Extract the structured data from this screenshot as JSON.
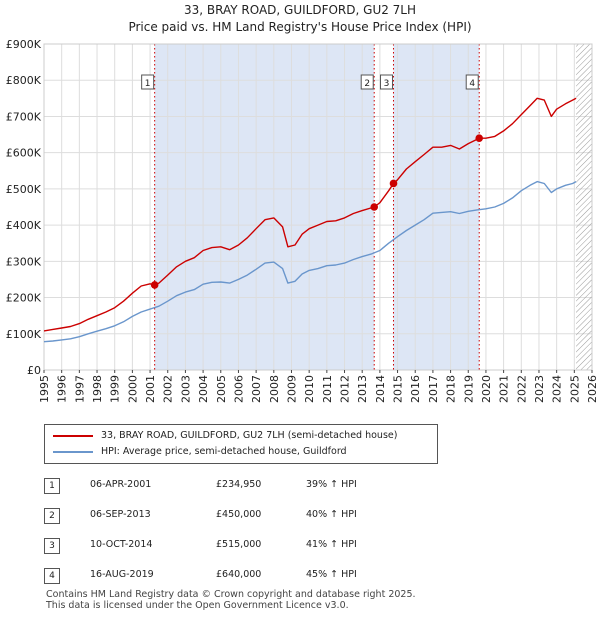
{
  "title": {
    "line1": "33, BRAY ROAD, GUILDFORD, GU2 7LH",
    "line2": "Price paid vs. HM Land Registry's House Price Index (HPI)"
  },
  "colors": {
    "property": "#cc0000",
    "hpi": "#6a96cc",
    "shade": "#dde6f5",
    "future_hatch": "#999999",
    "grid": "#dddddd"
  },
  "chart_data": {
    "type": "line",
    "title": "Price paid vs. HM Land Registry's House Price Index (HPI)",
    "xlabel": "",
    "ylabel": "",
    "xlim": [
      1995,
      2026
    ],
    "ylim": [
      0,
      900000
    ],
    "y_ticks": [
      0,
      100000,
      200000,
      300000,
      400000,
      500000,
      600000,
      700000,
      800000,
      900000
    ],
    "y_tick_labels": [
      "£0",
      "£100K",
      "£200K",
      "£300K",
      "£400K",
      "£500K",
      "£600K",
      "£700K",
      "£800K",
      "£900K"
    ],
    "x_ticks": [
      1995,
      1996,
      1997,
      1998,
      1999,
      2000,
      2001,
      2002,
      2003,
      2004,
      2005,
      2006,
      2007,
      2008,
      2009,
      2010,
      2011,
      2012,
      2013,
      2014,
      2015,
      2016,
      2017,
      2018,
      2019,
      2020,
      2021,
      2022,
      2023,
      2024,
      2025,
      2026
    ],
    "x_tick_labels": [
      "1995",
      "1996",
      "1997",
      "1998",
      "1999",
      "2000",
      "2001",
      "2002",
      "2003",
      "2004",
      "2005",
      "2006",
      "2007",
      "2008",
      "2009",
      "2010",
      "2011",
      "2012",
      "2013",
      "2014",
      "2015",
      "2016",
      "2017",
      "2018",
      "2019",
      "2020",
      "2021",
      "2022",
      "2023",
      "2024",
      "2025",
      "2026"
    ],
    "grid": true,
    "future_hatch_from": 2025.1,
    "shaded_ranges": [
      [
        2001.26,
        2013.68
      ],
      [
        2014.77,
        2019.62
      ]
    ],
    "series": [
      {
        "name": "33, BRAY ROAD, GUILDFORD, GU2 7LH (semi-detached house)",
        "x": [
          1995.0,
          1995.5,
          1996.0,
          1996.5,
          1997.0,
          1997.5,
          1998.0,
          1998.5,
          1999.0,
          1999.5,
          2000.0,
          2000.5,
          2001.0,
          2001.26,
          2001.5,
          2002.0,
          2002.5,
          2003.0,
          2003.5,
          2004.0,
          2004.5,
          2005.0,
          2005.5,
          2006.0,
          2006.5,
          2007.0,
          2007.5,
          2008.0,
          2008.5,
          2008.8,
          2009.2,
          2009.6,
          2010.0,
          2010.5,
          2011.0,
          2011.5,
          2012.0,
          2012.5,
          2013.0,
          2013.68,
          2014.0,
          2014.5,
          2014.77,
          2015.0,
          2015.5,
          2016.0,
          2016.5,
          2017.0,
          2017.5,
          2018.0,
          2018.5,
          2019.0,
          2019.62,
          2020.0,
          2020.5,
          2021.0,
          2021.5,
          2022.0,
          2022.5,
          2022.9,
          2023.3,
          2023.7,
          2024.0,
          2024.5,
          2024.9,
          2025.1
        ],
        "values": [
          108000,
          112000,
          116000,
          120000,
          128000,
          140000,
          150000,
          160000,
          172000,
          190000,
          212000,
          232000,
          238000,
          234950,
          240000,
          262000,
          285000,
          300000,
          310000,
          330000,
          338000,
          340000,
          332000,
          345000,
          365000,
          390000,
          415000,
          420000,
          395000,
          340000,
          345000,
          375000,
          390000,
          400000,
          410000,
          412000,
          420000,
          432000,
          440000,
          450000,
          462000,
          495000,
          515000,
          525000,
          555000,
          575000,
          595000,
          615000,
          615000,
          620000,
          610000,
          625000,
          640000,
          640000,
          645000,
          660000,
          680000,
          705000,
          730000,
          750000,
          745000,
          700000,
          720000,
          735000,
          745000,
          750000
        ]
      },
      {
        "name": "HPI: Average price, semi-detached house, Guildford",
        "x": [
          1995.0,
          1995.5,
          1996.0,
          1996.5,
          1997.0,
          1997.5,
          1998.0,
          1998.5,
          1999.0,
          1999.5,
          2000.0,
          2000.5,
          2001.0,
          2001.5,
          2002.0,
          2002.5,
          2003.0,
          2003.5,
          2004.0,
          2004.5,
          2005.0,
          2005.5,
          2006.0,
          2006.5,
          2007.0,
          2007.5,
          2008.0,
          2008.5,
          2008.8,
          2009.2,
          2009.6,
          2010.0,
          2010.5,
          2011.0,
          2011.5,
          2012.0,
          2012.5,
          2013.0,
          2013.5,
          2014.0,
          2014.5,
          2015.0,
          2015.5,
          2016.0,
          2016.5,
          2017.0,
          2017.5,
          2018.0,
          2018.5,
          2019.0,
          2019.5,
          2020.0,
          2020.5,
          2021.0,
          2021.5,
          2022.0,
          2022.5,
          2022.9,
          2023.3,
          2023.7,
          2024.0,
          2024.5,
          2024.9,
          2025.1
        ],
        "values": [
          78000,
          80000,
          83000,
          86000,
          92000,
          100000,
          107000,
          114000,
          122000,
          133000,
          148000,
          160000,
          168000,
          176000,
          190000,
          205000,
          215000,
          222000,
          237000,
          242000,
          243000,
          240000,
          250000,
          262000,
          278000,
          295000,
          298000,
          280000,
          240000,
          245000,
          265000,
          275000,
          280000,
          288000,
          290000,
          295000,
          305000,
          313000,
          320000,
          330000,
          350000,
          368000,
          385000,
          400000,
          415000,
          433000,
          435000,
          437000,
          432000,
          438000,
          442000,
          445000,
          450000,
          460000,
          475000,
          495000,
          510000,
          520000,
          515000,
          490000,
          500000,
          510000,
          515000,
          520000
        ]
      }
    ],
    "markers": [
      {
        "label": "1",
        "x": 2001.26,
        "y": 234950
      },
      {
        "label": "2",
        "x": 2013.68,
        "y": 450000
      },
      {
        "label": "3",
        "x": 2014.77,
        "y": 515000
      },
      {
        "label": "4",
        "x": 2019.62,
        "y": 640000
      }
    ]
  },
  "legend": {
    "property_label": "33, BRAY ROAD, GUILDFORD, GU2 7LH (semi-detached house)",
    "hpi_label": "HPI: Average price, semi-detached house, Guildford"
  },
  "transactions": [
    {
      "num": "1",
      "date": "06-APR-2001",
      "price": "£234,950",
      "hpi": "39% ↑ HPI"
    },
    {
      "num": "2",
      "date": "06-SEP-2013",
      "price": "£450,000",
      "hpi": "40% ↑ HPI"
    },
    {
      "num": "3",
      "date": "10-OCT-2014",
      "price": "£515,000",
      "hpi": "41% ↑ HPI"
    },
    {
      "num": "4",
      "date": "16-AUG-2019",
      "price": "£640,000",
      "hpi": "45% ↑ HPI"
    }
  ],
  "footer": {
    "line1": "Contains HM Land Registry data © Crown copyright and database right 2025.",
    "line2": "This data is licensed under the Open Government Licence v3.0."
  }
}
